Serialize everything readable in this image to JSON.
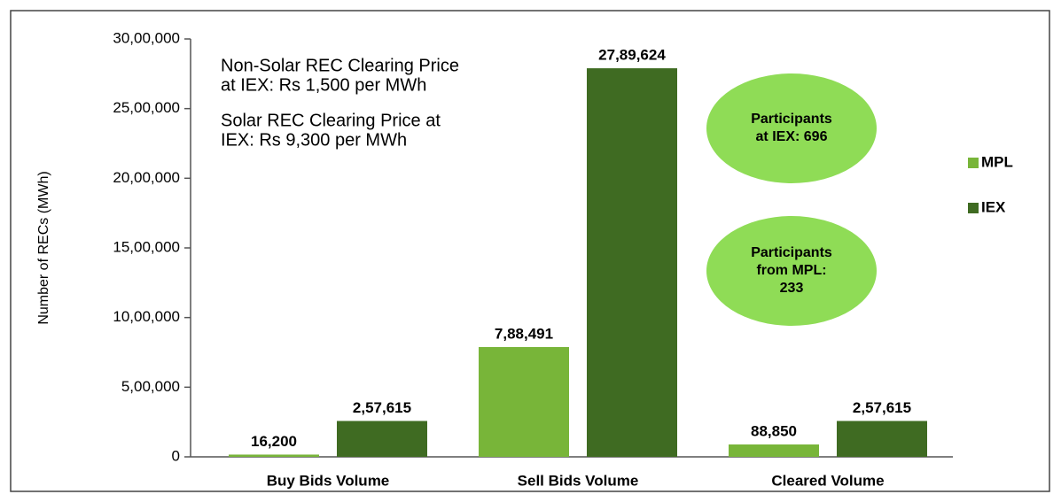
{
  "chart_data": {
    "type": "bar",
    "ylabel": "Number of RECs (MWh)",
    "categories": [
      "Buy Bids Volume",
      "Sell Bids Volume",
      "Cleared Volume"
    ],
    "series": [
      {
        "name": "MPL",
        "color": "#78b539",
        "values": [
          16200,
          788491,
          88850
        ],
        "value_labels": [
          "16,200",
          "7,88,491",
          "88,850"
        ]
      },
      {
        "name": "IEX",
        "color": "#3f6b22",
        "values": [
          257615,
          2789624,
          257615
        ],
        "value_labels": [
          "2,57,615",
          "27,89,624",
          "2,57,615"
        ]
      }
    ],
    "ylim": [
      0,
      3000000
    ],
    "yticks": [
      0,
      {
        "value": 500000,
        "label": "5,00,000"
      },
      {
        "value": 1000000,
        "label": "10,00,000"
      },
      {
        "value": 1500000,
        "label": "15,00,000"
      },
      {
        "value": 2000000,
        "label": "20,00,000"
      },
      {
        "value": 2500000,
        "label": "25,00,000"
      },
      {
        "value": 3000000,
        "label": "30,00,000"
      }
    ],
    "legend": "right",
    "annotations": [
      {
        "lines": [
          "Non-Solar REC Clearing Price",
          "at IEX: Rs 1,500 per MWh"
        ]
      },
      {
        "lines": [
          "Solar REC Clearing Price at",
          "IEX:  Rs 9,300 per MWh"
        ]
      }
    ],
    "callouts": [
      {
        "lines": [
          "Participants",
          "at IEX: 696"
        ],
        "color": "#8fdc56"
      },
      {
        "lines": [
          "Participants",
          "from MPL:",
          "233"
        ],
        "color": "#8fdc56"
      }
    ]
  }
}
